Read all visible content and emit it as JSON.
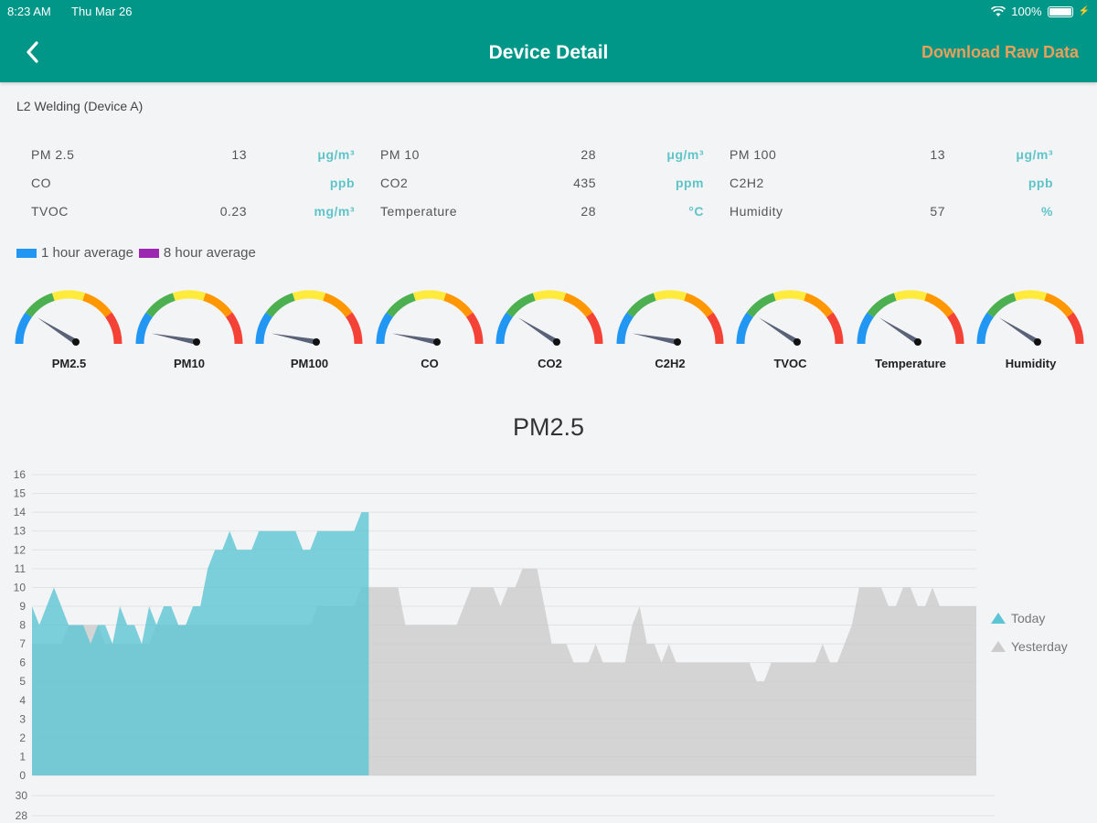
{
  "status_bar": {
    "time": "8:23 AM",
    "date": "Thu Mar 26",
    "battery": "100%"
  },
  "header": {
    "title": "Device Detail",
    "download_label": "Download Raw Data"
  },
  "device": {
    "name": "L2 Welding (Device A)"
  },
  "readings": [
    {
      "name": "PM 2.5",
      "value": "13",
      "unit": "μg/m³"
    },
    {
      "name": "PM 10",
      "value": "28",
      "unit": "μg/m³"
    },
    {
      "name": "PM 100",
      "value": "13",
      "unit": "μg/m³"
    },
    {
      "name": "CO",
      "value": "",
      "unit": "ppb"
    },
    {
      "name": "CO2",
      "value": "435",
      "unit": "ppm"
    },
    {
      "name": "C2H2",
      "value": "",
      "unit": "ppb"
    },
    {
      "name": "TVOC",
      "value": "0.23",
      "unit": "mg/m³"
    },
    {
      "name": "Temperature",
      "value": "28",
      "unit": "°C"
    },
    {
      "name": "Humidity",
      "value": "57",
      "unit": "%"
    }
  ],
  "legend_top": {
    "one_hour": "1 hour average",
    "eight_hour": "8 hour average",
    "one_hour_color": "#2196f3",
    "eight_hour_color": "#9c27b0"
  },
  "gauges": [
    {
      "label": "PM2.5",
      "needle_level": 0.18
    },
    {
      "label": "PM10",
      "needle_level": 0.06
    },
    {
      "label": "PM100",
      "needle_level": 0.06
    },
    {
      "label": "CO",
      "needle_level": 0.06
    },
    {
      "label": "CO2",
      "needle_level": 0.18
    },
    {
      "label": "C2H2",
      "needle_level": 0.06
    },
    {
      "label": "TVOC",
      "needle_level": 0.18
    },
    {
      "label": "Temperature",
      "needle_level": 0.18
    },
    {
      "label": "Humidity",
      "needle_level": 0.18
    }
  ],
  "gauge_colors": [
    "#2196f3",
    "#4caf50",
    "#ffeb3b",
    "#ff9800",
    "#f44336"
  ],
  "chart_data": [
    {
      "type": "area",
      "title": "PM2.5",
      "ylim": [
        0,
        16
      ],
      "yticks": [
        0,
        1,
        2,
        3,
        4,
        5,
        6,
        7,
        8,
        9,
        10,
        11,
        12,
        13,
        14,
        15,
        16
      ],
      "grid": true,
      "legend_position": "right",
      "series": [
        {
          "name": "Today",
          "color": "#5bc5d5",
          "values": [
            9,
            8,
            9,
            10,
            9,
            8,
            8,
            8,
            7,
            8,
            8,
            7,
            9,
            8,
            8,
            7,
            9,
            8,
            9,
            9,
            8,
            8,
            9,
            9,
            11,
            12,
            12,
            13,
            12,
            12,
            12,
            13,
            13,
            13,
            13,
            13,
            13,
            12,
            12,
            13,
            13,
            13,
            13,
            13,
            13,
            14,
            14
          ]
        },
        {
          "name": "Yesterday",
          "color": "#cccccc",
          "values": [
            7,
            7,
            7,
            7,
            7,
            8,
            8,
            8,
            8,
            8,
            7,
            7,
            7,
            7,
            7,
            7,
            7,
            8,
            8,
            8,
            8,
            8,
            8,
            8,
            8,
            8,
            8,
            8,
            8,
            8,
            8,
            8,
            8,
            8,
            8,
            8,
            8,
            8,
            8,
            9,
            9,
            9,
            9,
            9,
            9,
            10,
            10,
            10,
            10,
            10,
            10,
            8,
            8,
            8,
            8,
            8,
            8,
            8,
            8,
            9,
            10,
            10,
            10,
            10,
            9,
            10,
            10,
            11,
            11,
            11,
            9,
            7,
            7,
            7,
            6,
            6,
            6,
            7,
            6,
            6,
            6,
            6,
            8,
            9,
            7,
            7,
            6,
            7,
            6,
            6,
            6,
            6,
            6,
            6,
            6,
            6,
            6,
            6,
            6,
            5,
            5,
            6,
            6,
            6,
            6,
            6,
            6,
            6,
            7,
            6,
            6,
            7,
            8,
            10,
            10,
            10,
            10,
            9,
            9,
            10,
            10,
            9,
            9,
            10,
            9,
            9,
            9,
            9,
            9,
            9
          ]
        }
      ]
    },
    {
      "type": "line",
      "title": "",
      "yticks": [
        28,
        30
      ]
    }
  ]
}
